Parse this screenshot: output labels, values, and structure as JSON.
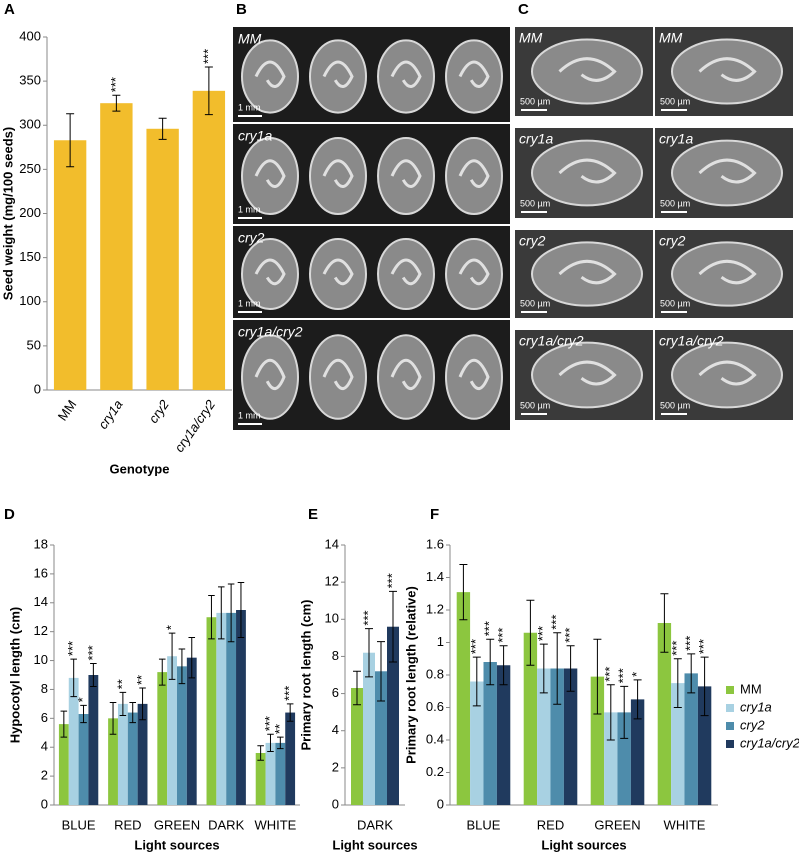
{
  "chart_data": [
    {
      "panel": "A",
      "type": "bar",
      "categories": [
        "MM",
        "cry1a",
        "cry2",
        "cry1a/cry2"
      ],
      "values": [
        283,
        325,
        296,
        339
      ],
      "errors": [
        30,
        9,
        12,
        27
      ],
      "annotations": [
        null,
        "***",
        null,
        "***"
      ],
      "color": "#f2bd2c",
      "ylim": [
        0,
        400
      ],
      "yticks": [
        0,
        50,
        100,
        150,
        200,
        250,
        300,
        350,
        400
      ],
      "ylabel": "Seed weight (mg/100 seeds)",
      "xlabel": "Genotype"
    },
    {
      "panel": "D",
      "type": "bar",
      "categories": [
        "BLUE",
        "RED",
        "GREEN",
        "DARK",
        "WHITE"
      ],
      "series": [
        {
          "color": "#8cc63f",
          "values": [
            5.6,
            6.0,
            9.2,
            13.0,
            3.6
          ],
          "errors": [
            0.9,
            1.1,
            0.9,
            1.5,
            0.5
          ],
          "annotations": [
            null,
            null,
            null,
            null,
            null
          ]
        },
        {
          "color": "#a8d1e2",
          "values": [
            8.8,
            7.0,
            10.3,
            13.3,
            4.3
          ],
          "errors": [
            1.3,
            0.8,
            1.6,
            1.8,
            0.6
          ],
          "annotations": [
            "***",
            "**",
            "*",
            null,
            "***"
          ]
        },
        {
          "color": "#4e8cab",
          "values": [
            6.3,
            6.4,
            9.6,
            13.3,
            4.3
          ],
          "errors": [
            0.6,
            0.7,
            1.2,
            2.0,
            0.4
          ],
          "annotations": [
            "*",
            null,
            null,
            null,
            "**"
          ]
        },
        {
          "color": "#203a5e",
          "values": [
            9.0,
            7.0,
            10.2,
            13.5,
            6.4
          ],
          "errors": [
            0.8,
            1.1,
            1.4,
            1.9,
            0.6
          ],
          "annotations": [
            "***",
            "**",
            null,
            null,
            "***"
          ]
        }
      ],
      "ylim": [
        0,
        18
      ],
      "yticks": [
        0,
        2,
        4,
        6,
        8,
        10,
        12,
        14,
        16,
        18
      ],
      "ylabel": "Hypocotyl length (cm)",
      "xlabel": "Light sources"
    },
    {
      "panel": "E",
      "type": "bar",
      "categories": [
        "DARK"
      ],
      "series": [
        {
          "color": "#8cc63f",
          "values": [
            6.3
          ],
          "errors": [
            0.9
          ],
          "annotations": [
            null
          ]
        },
        {
          "color": "#a8d1e2",
          "values": [
            8.2
          ],
          "errors": [
            1.3
          ],
          "annotations": [
            "***"
          ]
        },
        {
          "color": "#4e8cab",
          "values": [
            7.2
          ],
          "errors": [
            1.6
          ],
          "annotations": [
            null
          ]
        },
        {
          "color": "#203a5e",
          "values": [
            9.6
          ],
          "errors": [
            1.9
          ],
          "annotations": [
            "***"
          ]
        }
      ],
      "ylim": [
        0,
        14
      ],
      "yticks": [
        0,
        2,
        4,
        6,
        8,
        10,
        12,
        14
      ],
      "ylabel": "Primary root length (cm)",
      "xlabel": "Light sources"
    },
    {
      "panel": "F",
      "type": "bar",
      "categories": [
        "BLUE",
        "RED",
        "GREEN",
        "WHITE"
      ],
      "series": [
        {
          "name": "MM",
          "color": "#8cc63f",
          "values": [
            1.31,
            1.06,
            0.79,
            1.12
          ],
          "errors": [
            0.17,
            0.2,
            0.23,
            0.18
          ],
          "annotations": [
            null,
            null,
            null,
            null
          ]
        },
        {
          "name": "cry1a",
          "color": "#a8d1e2",
          "values": [
            0.76,
            0.84,
            0.57,
            0.75
          ],
          "errors": [
            0.15,
            0.15,
            0.17,
            0.15
          ],
          "annotations": [
            "***",
            "***",
            "***",
            "***"
          ]
        },
        {
          "name": "cry2",
          "color": "#4e8cab",
          "values": [
            0.88,
            0.84,
            0.57,
            0.81
          ],
          "errors": [
            0.14,
            0.22,
            0.16,
            0.12
          ],
          "annotations": [
            "***",
            "***",
            "***",
            "***"
          ]
        },
        {
          "name": "cry1a/cry2",
          "color": "#203a5e",
          "values": [
            0.86,
            0.84,
            0.65,
            0.73
          ],
          "errors": [
            0.12,
            0.14,
            0.12,
            0.18
          ],
          "annotations": [
            "***",
            "***",
            "*",
            "***"
          ]
        }
      ],
      "ylim": [
        0,
        1.6
      ],
      "yticks": [
        0,
        0.2,
        0.4,
        0.6,
        0.8,
        1,
        1.2,
        1.4,
        1.6
      ],
      "ylabel": "Primary root length (relative)",
      "xlabel": "Light sources",
      "legend": "right"
    }
  ],
  "panel_B": {
    "panel": "B",
    "rows": [
      {
        "label": "MM",
        "scale": "1 mm"
      },
      {
        "label": "cry1a",
        "scale": "1 mm"
      },
      {
        "label": "cry2",
        "scale": "1 mm"
      },
      {
        "label": "cry1a/cry2",
        "scale": "1 mm"
      }
    ]
  },
  "panel_C": {
    "panel": "C",
    "rows": [
      {
        "labels": [
          "MM",
          "MM"
        ],
        "scales": [
          "500 µm",
          "500 µm"
        ]
      },
      {
        "labels": [
          "cry1a",
          "cry1a"
        ],
        "scales": [
          "500 µm",
          "500 µm"
        ]
      },
      {
        "labels": [
          "cry2",
          "cry2"
        ],
        "scales": [
          "500 µm",
          "500 µm"
        ]
      },
      {
        "labels": [
          "cry1a/cry2",
          "cry1a/cry2"
        ],
        "scales": [
          "500 µm",
          "500 µm"
        ]
      }
    ]
  }
}
